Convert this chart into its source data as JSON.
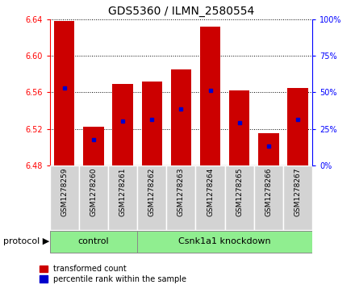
{
  "title": "GDS5360 / ILMN_2580554",
  "samples": [
    "GSM1278259",
    "GSM1278260",
    "GSM1278261",
    "GSM1278262",
    "GSM1278263",
    "GSM1278264",
    "GSM1278265",
    "GSM1278266",
    "GSM1278267"
  ],
  "bar_tops": [
    6.638,
    6.522,
    6.569,
    6.572,
    6.585,
    6.632,
    6.562,
    6.515,
    6.565
  ],
  "blue_dots": [
    6.565,
    6.508,
    6.529,
    6.53,
    6.542,
    6.562,
    6.527,
    6.501,
    6.53
  ],
  "bar_base": 6.48,
  "ylim": [
    6.48,
    6.64
  ],
  "y_ticks": [
    6.48,
    6.52,
    6.56,
    6.6,
    6.64
  ],
  "right_yticks": [
    0,
    25,
    50,
    75,
    100
  ],
  "right_ytick_labels": [
    "0%",
    "25%",
    "50%",
    "75%",
    "100%"
  ],
  "bar_color": "#cc0000",
  "dot_color": "#0000cc",
  "control_label": "control",
  "knockdown_label": "Csnk1a1 knockdown",
  "control_count": 3,
  "knockdown_count": 6,
  "protocol_label": "protocol",
  "legend1": "transformed count",
  "legend2": "percentile rank within the sample",
  "green_color": "#90ee90",
  "gray_color": "#d3d3d3",
  "bar_width": 0.7,
  "title_fontsize": 10,
  "tick_fontsize": 7,
  "label_fontsize": 8
}
